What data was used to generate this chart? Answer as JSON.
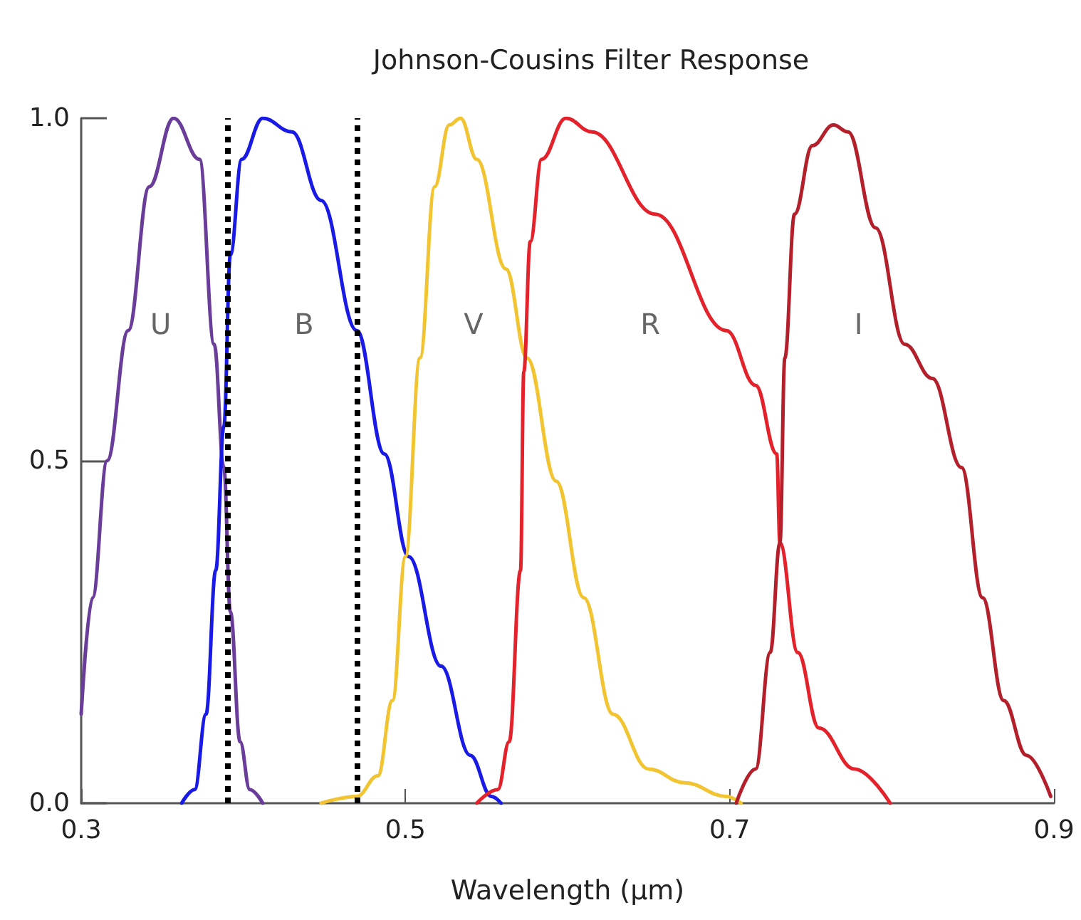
{
  "chart_data": {
    "type": "line",
    "title": "Johnson-Cousins Filter Response",
    "xlabel": "Wavelength (µm)",
    "xlim": [
      0.3,
      0.9
    ],
    "xticks": [
      0.3,
      0.5,
      0.7,
      0.9
    ],
    "ylim": [
      0,
      1
    ],
    "yticks": [
      {
        "value": 0,
        "label": "0.0"
      },
      {
        "value": 0.5,
        "label": "0.5"
      },
      {
        "value": 1,
        "label": "1.0"
      }
    ],
    "grid": false,
    "marker": "none",
    "line_style": "solid",
    "series": [
      {
        "name": "U",
        "color": "#6a3d9a",
        "x": [
          0.3,
          0.307,
          0.316,
          0.329,
          0.342,
          0.357,
          0.373,
          0.382,
          0.388,
          0.392,
          0.398,
          0.404,
          0.412
        ],
        "values": [
          0.13,
          0.3,
          0.5,
          0.69,
          0.9,
          1.0,
          0.94,
          0.67,
          0.49,
          0.28,
          0.09,
          0.02,
          0
        ]
      },
      {
        "name": "B",
        "color": "#1a1ae6",
        "x": [
          0.362,
          0.37,
          0.377,
          0.383,
          0.388,
          0.392,
          0.399,
          0.412,
          0.43,
          0.448,
          0.47,
          0.487,
          0.502,
          0.522,
          0.54,
          0.553,
          0.559
        ],
        "values": [
          0,
          0.02,
          0.13,
          0.34,
          0.55,
          0.8,
          0.94,
          1.0,
          0.98,
          0.88,
          0.69,
          0.51,
          0.36,
          0.2,
          0.07,
          0.01,
          0
        ]
      },
      {
        "name": "V",
        "color": "#f2c431",
        "x": [
          0.448,
          0.47,
          0.483,
          0.492,
          0.5,
          0.509,
          0.518,
          0.527,
          0.534,
          0.544,
          0.562,
          0.575,
          0.593,
          0.61,
          0.628,
          0.65,
          0.672,
          0.698,
          0.707
        ],
        "values": [
          0,
          0.01,
          0.04,
          0.15,
          0.36,
          0.65,
          0.9,
          0.99,
          1.0,
          0.94,
          0.78,
          0.65,
          0.47,
          0.3,
          0.13,
          0.05,
          0.03,
          0.01,
          0
        ]
      },
      {
        "name": "R",
        "color": "#e3222c",
        "x": [
          0.544,
          0.557,
          0.564,
          0.571,
          0.573,
          0.577,
          0.584,
          0.599,
          0.615,
          0.654,
          0.698,
          0.716,
          0.729,
          0.731,
          0.742,
          0.755,
          0.777,
          0.799
        ],
        "values": [
          0,
          0.02,
          0.09,
          0.34,
          0.63,
          0.82,
          0.94,
          1.0,
          0.98,
          0.86,
          0.69,
          0.61,
          0.51,
          0.38,
          0.22,
          0.11,
          0.05,
          0
        ]
      },
      {
        "name": "I",
        "color": "#b3202b",
        "x": [
          0.704,
          0.716,
          0.725,
          0.731,
          0.734,
          0.74,
          0.751,
          0.764,
          0.773,
          0.79,
          0.808,
          0.825,
          0.843,
          0.856,
          0.869,
          0.883,
          0.898
        ],
        "values": [
          0,
          0.05,
          0.22,
          0.38,
          0.65,
          0.86,
          0.96,
          0.99,
          0.98,
          0.84,
          0.67,
          0.62,
          0.49,
          0.3,
          0.15,
          0.07,
          0.01
        ]
      }
    ],
    "ref_lines": [
      {
        "axis": "x",
        "value": 0.39,
        "color": "#000000",
        "line_style": "dotted"
      },
      {
        "axis": "x",
        "value": 0.471,
        "color": "#000000",
        "line_style": "dotted"
      }
    ]
  }
}
